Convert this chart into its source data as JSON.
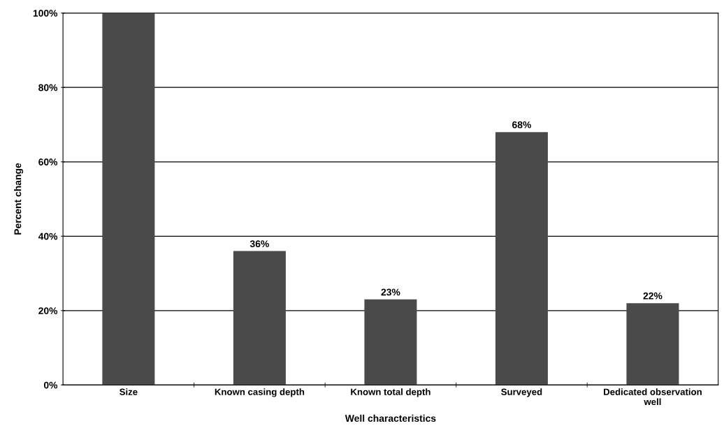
{
  "chart_data": {
    "type": "bar",
    "xlabel": "Well characteristics",
    "ylabel": "Percent change",
    "categories": [
      "Size",
      "Known casing depth",
      "Known total depth",
      "Surveyed",
      "Dedicated observation\nwell"
    ],
    "values": [
      100,
      36,
      23,
      68,
      22
    ],
    "color": "#4a4a4a",
    "value_labels": [
      null,
      "36%",
      "23%",
      "68%",
      "22%"
    ],
    "ylim": [
      0,
      100
    ],
    "yticks": [
      {
        "value": 0,
        "label": "0%"
      },
      {
        "value": 20,
        "label": "20%"
      },
      {
        "value": 40,
        "label": "40%"
      },
      {
        "value": 60,
        "label": "60%"
      },
      {
        "value": 80,
        "label": "80%"
      },
      {
        "value": 100,
        "label": "100%"
      }
    ],
    "grid": "y",
    "legend": false
  }
}
